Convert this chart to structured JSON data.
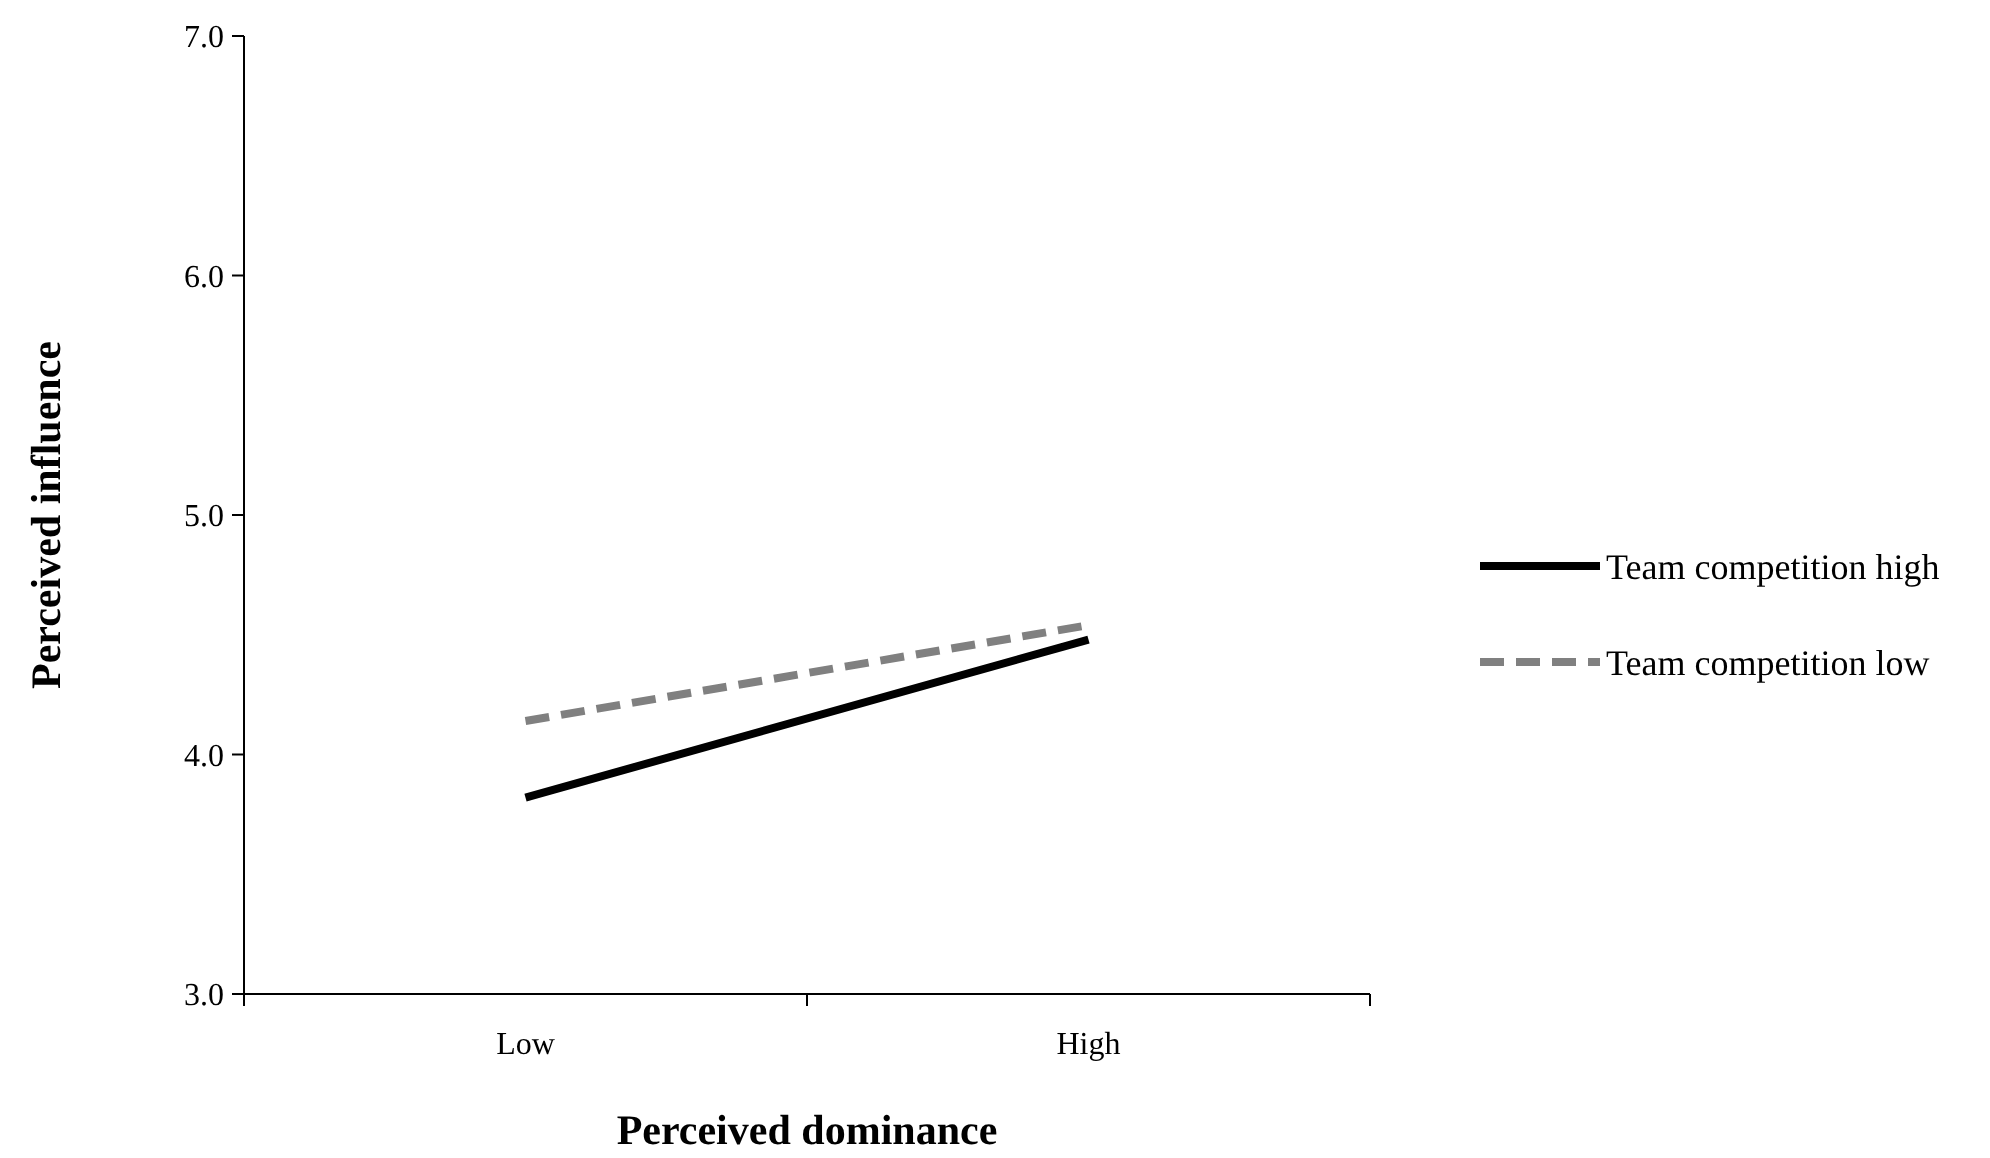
{
  "chart_data": {
    "type": "line",
    "xlabel": "Perceived dominance",
    "ylabel": "Perceived influence",
    "categories": [
      "Low",
      "High"
    ],
    "series": [
      {
        "name": "Team competition high",
        "color": "#000000",
        "values": [
          3.82,
          4.48
        ],
        "line_style": "solid"
      },
      {
        "name": "Team competition low",
        "color": "#808080",
        "values": [
          4.14,
          4.54
        ],
        "line_style": "dashed"
      }
    ],
    "ylim": [
      3,
      7
    ],
    "yticks": [
      {
        "value": 3,
        "label": "3.0"
      },
      {
        "value": 4,
        "label": "4.0"
      },
      {
        "value": 5,
        "label": "5.0"
      },
      {
        "value": 6,
        "label": "6.0"
      },
      {
        "value": 7,
        "label": "7.0"
      }
    ],
    "grid": false,
    "legend": "right",
    "marker": "none"
  }
}
